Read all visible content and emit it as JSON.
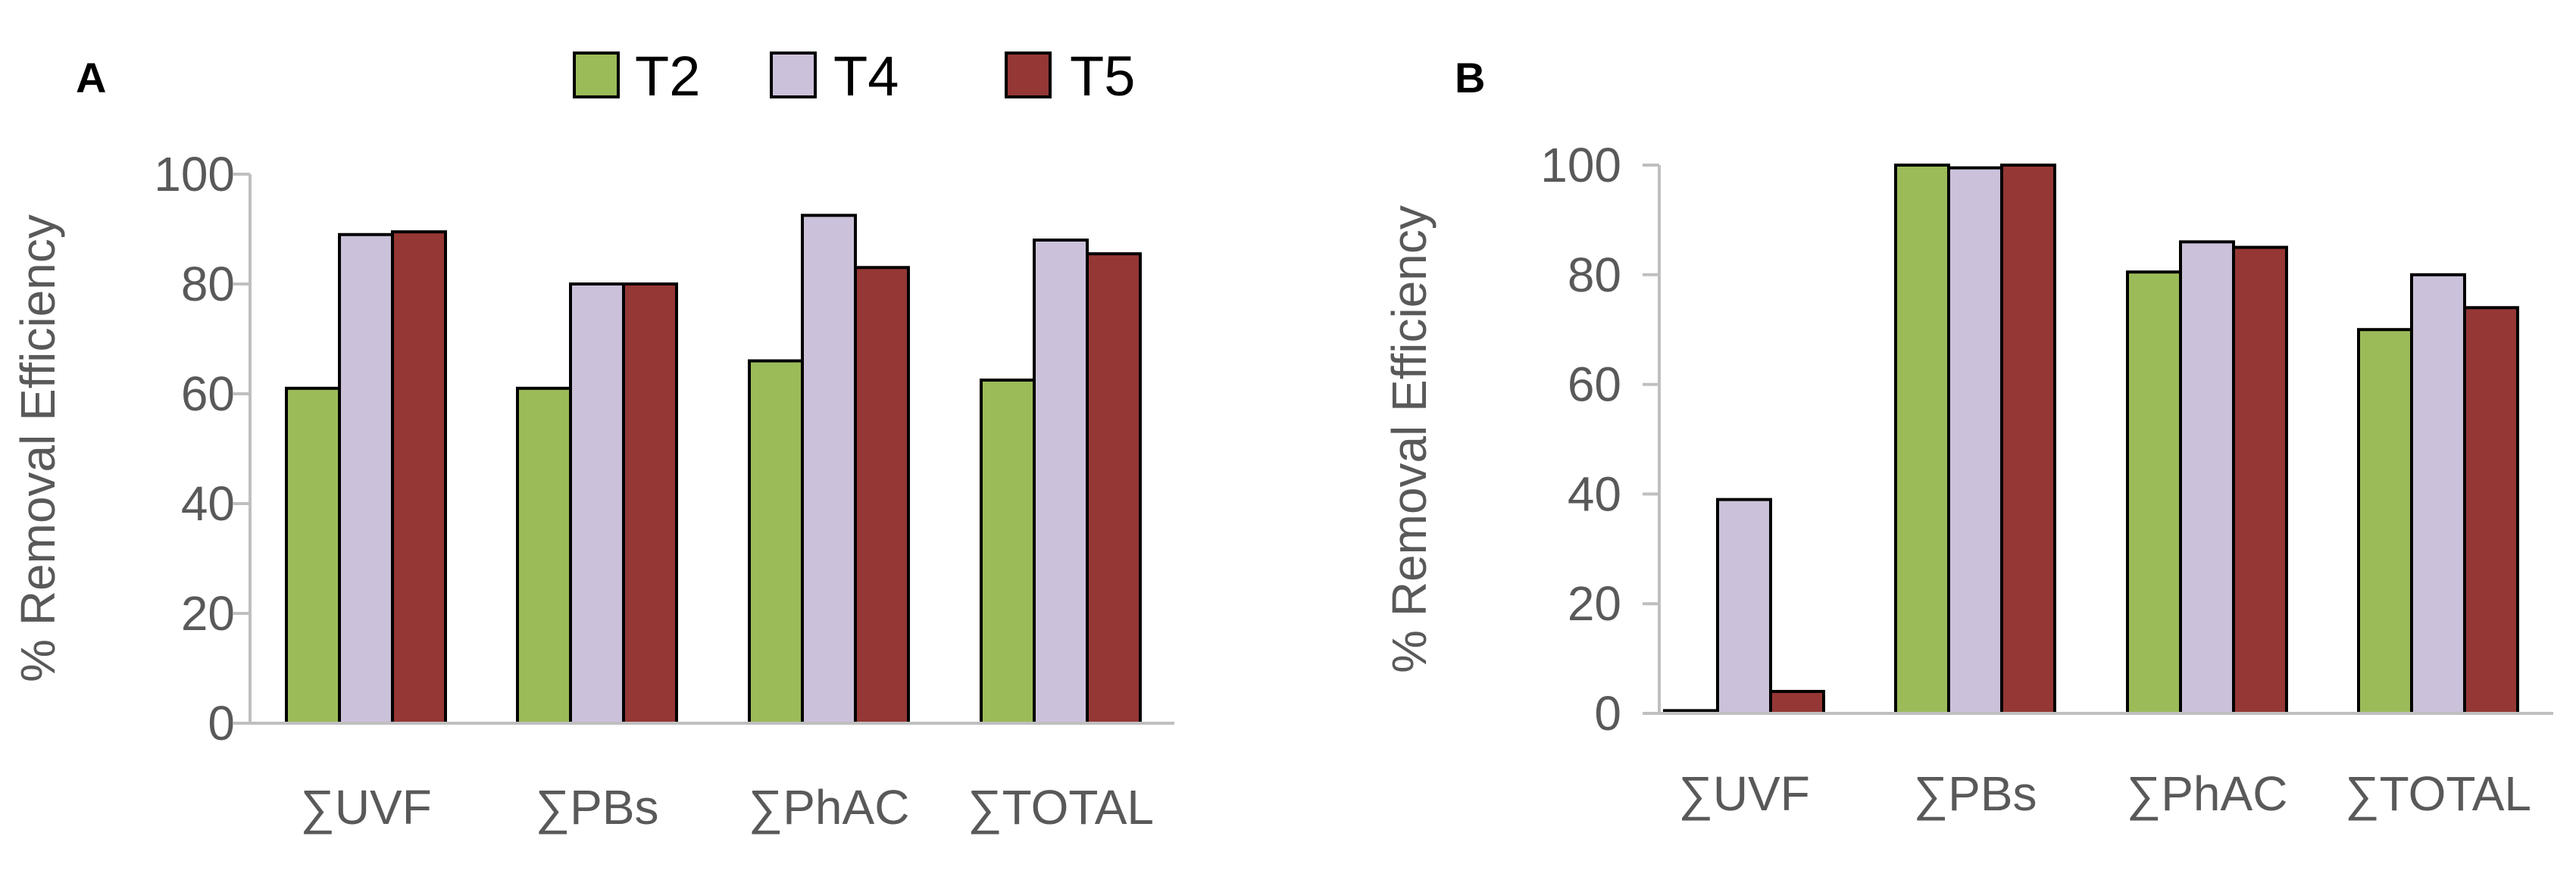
{
  "legend": [
    {
      "name": "T2",
      "color": "#9BBB59"
    },
    {
      "name": "T4",
      "color": "#CCC1DA"
    },
    {
      "name": "T5",
      "color": "#953735"
    }
  ],
  "chart_data": [
    {
      "type": "bar",
      "panel": "A",
      "categories": [
        "∑UVF",
        "∑PBs",
        "∑PhAC",
        "∑TOTAL"
      ],
      "series": [
        {
          "name": "T2",
          "values": [
            61,
            61,
            66,
            62.5
          ]
        },
        {
          "name": "T4",
          "values": [
            89,
            80,
            92.5,
            88
          ]
        },
        {
          "name": "T5",
          "values": [
            89.5,
            80,
            83,
            85.5
          ]
        }
      ],
      "ylabel": "% Removal Efficiency",
      "ylim": [
        0,
        100
      ],
      "yticks": [
        0,
        20,
        40,
        60,
        80,
        100
      ],
      "grid": false
    },
    {
      "type": "bar",
      "panel": "B",
      "categories": [
        "∑UVF",
        "∑PBs",
        "∑PhAC",
        "∑TOTAL"
      ],
      "series": [
        {
          "name": "T2",
          "values": [
            0.5,
            100,
            80.5,
            70
          ]
        },
        {
          "name": "T4",
          "values": [
            39,
            99.5,
            86,
            80
          ]
        },
        {
          "name": "T5",
          "values": [
            4,
            100,
            85,
            74
          ]
        }
      ],
      "ylabel": "% Removal Efficiency",
      "ylim": [
        0,
        100
      ],
      "yticks": [
        0,
        20,
        40,
        60,
        80,
        100
      ],
      "grid": false
    }
  ]
}
